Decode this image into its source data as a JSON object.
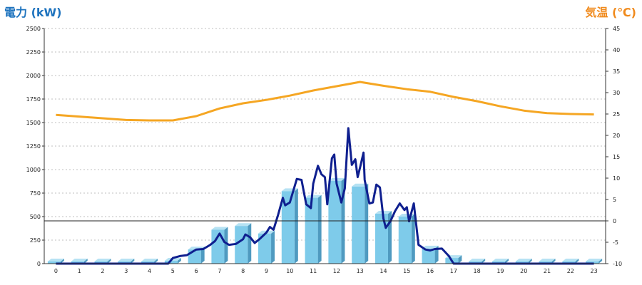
{
  "units": {
    "left": "電力 (kW)",
    "right": "気温 (℃)"
  },
  "colors": {
    "bar_face": "#7ecbea",
    "bar_side": "#4f9ac0",
    "bar_top": "#b6e2f3",
    "power_line": "#0f1f8f",
    "temp_line": "#f5a623",
    "grid": "#bfbfbf",
    "left_label": "#1e73be",
    "right_label": "#f08a1c"
  },
  "chart_data": {
    "type": "bar",
    "categories": [
      "0",
      "1",
      "2",
      "3",
      "4",
      "5",
      "6",
      "7",
      "8",
      "9",
      "10",
      "11",
      "12",
      "13",
      "14",
      "15",
      "16",
      "17",
      "18",
      "19",
      "20",
      "21",
      "22",
      "23"
    ],
    "left_axis": {
      "ylim": [
        0,
        2500
      ],
      "ticks": [
        "0",
        "250",
        "500",
        "750",
        "1000",
        "1250",
        "1500",
        "1750",
        "2000",
        "2250",
        "2500"
      ]
    },
    "right_axis": {
      "ylim": [
        -10,
        45
      ],
      "ticks": [
        "-10",
        "-5",
        "0",
        "5",
        "10",
        "15",
        "20",
        "25",
        "30",
        "35",
        "40",
        "45"
      ]
    },
    "grid": true,
    "series": [
      {
        "kind": "bar",
        "axis": "left",
        "values": [
          0,
          0,
          0,
          0,
          0,
          30,
          150,
          360,
          400,
          320,
          770,
          700,
          880,
          820,
          530,
          500,
          160,
          60,
          0,
          0,
          0,
          0,
          0,
          0
        ]
      },
      {
        "kind": "line",
        "axis": "left",
        "points": [
          [
            0,
            0
          ],
          [
            1,
            0
          ],
          [
            2,
            0
          ],
          [
            3,
            0
          ],
          [
            4,
            0
          ],
          [
            4.8,
            0
          ],
          [
            5,
            60
          ],
          [
            5.3,
            80
          ],
          [
            5.6,
            90
          ],
          [
            6,
            150
          ],
          [
            6.3,
            155
          ],
          [
            6.6,
            200
          ],
          [
            6.8,
            240
          ],
          [
            7,
            320
          ],
          [
            7.2,
            230
          ],
          [
            7.4,
            200
          ],
          [
            7.7,
            210
          ],
          [
            8,
            260
          ],
          [
            8.1,
            310
          ],
          [
            8.3,
            280
          ],
          [
            8.5,
            220
          ],
          [
            8.7,
            260
          ],
          [
            9,
            330
          ],
          [
            9.15,
            390
          ],
          [
            9.3,
            360
          ],
          [
            9.5,
            520
          ],
          [
            9.7,
            700
          ],
          [
            9.8,
            620
          ],
          [
            10,
            650
          ],
          [
            10.3,
            900
          ],
          [
            10.5,
            890
          ],
          [
            10.7,
            630
          ],
          [
            10.9,
            590
          ],
          [
            11,
            850
          ],
          [
            11.2,
            1040
          ],
          [
            11.35,
            950
          ],
          [
            11.5,
            920
          ],
          [
            11.6,
            630
          ],
          [
            11.8,
            1120
          ],
          [
            11.9,
            1160
          ],
          [
            12,
            850
          ],
          [
            12.2,
            650
          ],
          [
            12.35,
            800
          ],
          [
            12.5,
            1440
          ],
          [
            12.65,
            1050
          ],
          [
            12.8,
            1110
          ],
          [
            12.9,
            920
          ],
          [
            13,
            1020
          ],
          [
            13.15,
            1180
          ],
          [
            13.2,
            890
          ],
          [
            13.4,
            640
          ],
          [
            13.55,
            650
          ],
          [
            13.7,
            840
          ],
          [
            13.85,
            810
          ],
          [
            14,
            480
          ],
          [
            14.1,
            380
          ],
          [
            14.3,
            450
          ],
          [
            14.5,
            560
          ],
          [
            14.7,
            640
          ],
          [
            14.9,
            570
          ],
          [
            15,
            600
          ],
          [
            15.1,
            450
          ],
          [
            15.3,
            640
          ],
          [
            15.5,
            200
          ],
          [
            15.8,
            150
          ],
          [
            16,
            140
          ],
          [
            16.2,
            155
          ],
          [
            16.5,
            160
          ],
          [
            16.8,
            80
          ],
          [
            17,
            0
          ],
          [
            18,
            0
          ],
          [
            19,
            0
          ],
          [
            20,
            0
          ],
          [
            21,
            0
          ],
          [
            22,
            0
          ],
          [
            23,
            0
          ]
        ]
      },
      {
        "kind": "line",
        "axis": "right",
        "points": [
          [
            0,
            24.8
          ],
          [
            1,
            24.4
          ],
          [
            2,
            24.0
          ],
          [
            3,
            23.6
          ],
          [
            4,
            23.5
          ],
          [
            5,
            23.5
          ],
          [
            6,
            24.5
          ],
          [
            7,
            26.3
          ],
          [
            8,
            27.5
          ],
          [
            9,
            28.3
          ],
          [
            10,
            29.3
          ],
          [
            11,
            30.5
          ],
          [
            12,
            31.5
          ],
          [
            13,
            32.5
          ],
          [
            14,
            31.6
          ],
          [
            15,
            30.8
          ],
          [
            16,
            30.2
          ],
          [
            17,
            29.0
          ],
          [
            18,
            28.0
          ],
          [
            19,
            26.8
          ],
          [
            20,
            25.8
          ],
          [
            21,
            25.2
          ],
          [
            22,
            25.0
          ],
          [
            23,
            24.9
          ]
        ]
      }
    ]
  }
}
